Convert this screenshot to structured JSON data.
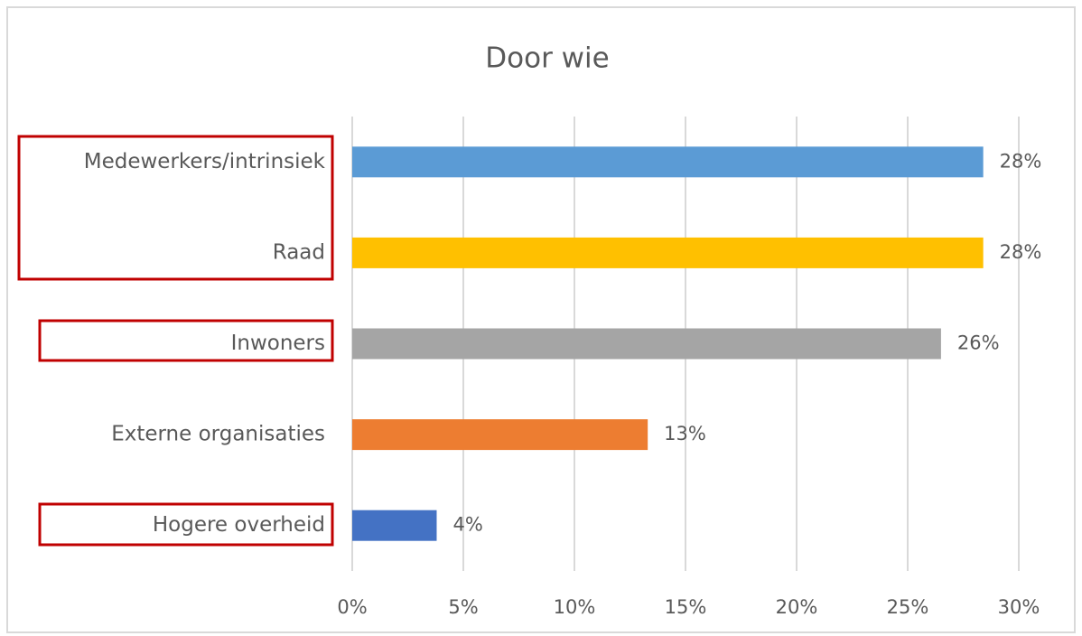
{
  "chart_data": {
    "type": "bar",
    "orientation": "horizontal",
    "title": "Door wie",
    "categories": [
      "Medewerkers/intrinsiek",
      "Raad",
      "Inwoners",
      "Externe organisaties",
      "Hogere overheid"
    ],
    "values": [
      28.4,
      28.4,
      26.5,
      13.3,
      3.8
    ],
    "value_labels": [
      "28%",
      "28%",
      "26%",
      "13%",
      "4%"
    ],
    "colors": [
      "#5b9bd5",
      "#ffc000",
      "#a5a5a5",
      "#ed7d31",
      "#4472c4"
    ],
    "xlim": [
      0,
      30
    ],
    "xticks": [
      {
        "value": 0,
        "label": "0%"
      },
      {
        "value": 5,
        "label": "5%"
      },
      {
        "value": 10,
        "label": "10%"
      },
      {
        "value": 15,
        "label": "15%"
      },
      {
        "value": 20,
        "label": "20%"
      },
      {
        "value": 25,
        "label": "25%"
      },
      {
        "value": 30,
        "label": "30%"
      }
    ],
    "grid": true
  }
}
